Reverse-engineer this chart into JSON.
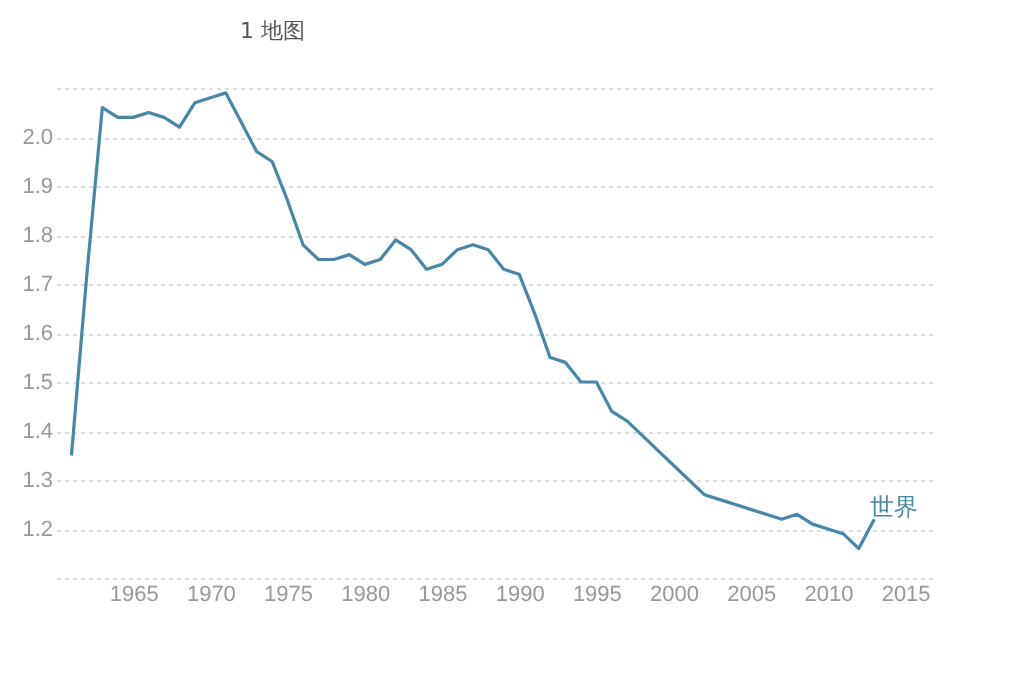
{
  "chart_data": {
    "type": "line",
    "annotations": [
      "1 地图"
    ],
    "x": [
      1961,
      1962,
      1963,
      1964,
      1965,
      1966,
      1967,
      1968,
      1969,
      1970,
      1971,
      1972,
      1973,
      1974,
      1975,
      1976,
      1977,
      1978,
      1979,
      1980,
      1981,
      1982,
      1983,
      1984,
      1985,
      1986,
      1987,
      1988,
      1989,
      1990,
      1991,
      1992,
      1993,
      1994,
      1995,
      1996,
      1997,
      1998,
      1999,
      2000,
      2001,
      2002,
      2003,
      2004,
      2005,
      2006,
      2007,
      2008,
      2009,
      2010,
      2011,
      2012,
      2013
    ],
    "series": [
      {
        "name": "世界",
        "color": "#4a86a8",
        "values": [
          1.35,
          1.72,
          2.06,
          2.04,
          2.04,
          2.05,
          2.04,
          2.02,
          2.07,
          2.08,
          2.09,
          2.03,
          1.97,
          1.95,
          1.87,
          1.78,
          1.75,
          1.75,
          1.76,
          1.74,
          1.75,
          1.79,
          1.77,
          1.73,
          1.74,
          1.77,
          1.78,
          1.77,
          1.73,
          1.72,
          1.64,
          1.55,
          1.54,
          1.5,
          1.5,
          1.44,
          1.42,
          1.39,
          1.36,
          1.33,
          1.3,
          1.27,
          1.26,
          1.25,
          1.24,
          1.23,
          1.22,
          1.23,
          1.21,
          1.2,
          1.19,
          1.16,
          1.22
        ]
      }
    ],
    "xlim": [
      1960,
      2017
    ],
    "xticks": [
      1965,
      1970,
      1975,
      1980,
      1985,
      1990,
      1995,
      2000,
      2005,
      2010,
      2015
    ],
    "ylim": [
      1.1,
      2.1
    ],
    "yticks": [
      {
        "value": 1.1,
        "label": null
      },
      1.2,
      1.3,
      1.4,
      1.5,
      1.6,
      1.7,
      1.8,
      1.9,
      {
        "value": 2,
        "label": "2.0"
      },
      {
        "value": 2.1,
        "label": null
      }
    ],
    "grid": "y",
    "marker": "none",
    "line_style": "solid"
  }
}
